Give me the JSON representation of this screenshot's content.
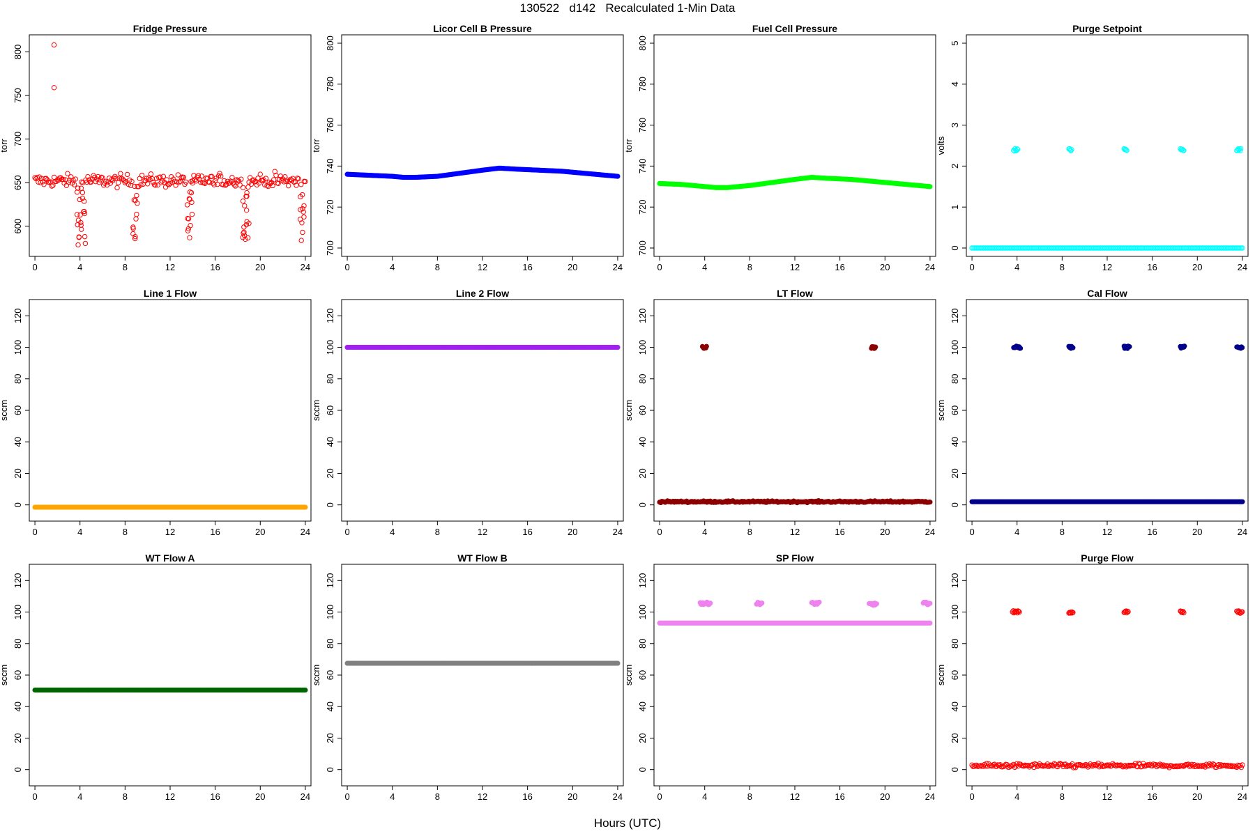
{
  "header": {
    "title": "130522   d142   Recalculated 1-Min Data"
  },
  "footer": {
    "xlabel": "Hours (UTC)"
  },
  "chart_data": [
    {
      "type": "scatter",
      "title": "Fridge Pressure",
      "ylabel": "torr",
      "color": "#ff0000",
      "marker": "open-circle",
      "xlim": [
        0,
        24
      ],
      "ylim": [
        575,
        810
      ],
      "yticks": [
        600,
        650,
        700,
        750,
        800
      ],
      "xticks": [
        0,
        4,
        8,
        12,
        16,
        20,
        24
      ],
      "series": [
        {
          "baseline": 652,
          "noise": 7,
          "dips": [
            [
              3.7,
              4.4,
              578
            ],
            [
              8.6,
              9.0,
              578
            ],
            [
              13.4,
              13.9,
              578
            ],
            [
              18.3,
              18.9,
              585
            ],
            [
              23.5,
              23.9,
              578
            ]
          ],
          "spikes": [
            [
              1.7,
              808
            ],
            [
              1.7,
              759
            ]
          ]
        }
      ]
    },
    {
      "type": "scatter",
      "title": "Licor Cell B Pressure",
      "ylabel": "torr",
      "color": "#0000ff",
      "marker": "filled-circle",
      "xlim": [
        0,
        24
      ],
      "ylim": [
        700,
        800
      ],
      "yticks": [
        700,
        720,
        740,
        760,
        780,
        800
      ],
      "xticks": [
        0,
        4,
        8,
        12,
        16,
        20,
        24
      ],
      "series": [
        {
          "x": [
            0,
            2,
            4,
            5,
            6,
            8,
            10,
            12,
            13.5,
            15,
            17,
            19,
            21,
            23,
            24
          ],
          "y": [
            736,
            735.5,
            735,
            734.5,
            734.5,
            735,
            736.5,
            738,
            739,
            738.5,
            738,
            737.5,
            736.5,
            735.5,
            735
          ]
        }
      ]
    },
    {
      "type": "scatter",
      "title": "Fuel Cell Pressure",
      "ylabel": "torr",
      "color": "#00ff00",
      "marker": "filled-circle",
      "xlim": [
        0,
        24
      ],
      "ylim": [
        700,
        800
      ],
      "yticks": [
        700,
        720,
        740,
        760,
        780,
        800
      ],
      "xticks": [
        0,
        4,
        8,
        12,
        16,
        20,
        24
      ],
      "series": [
        {
          "x": [
            0,
            2,
            4,
            5,
            6,
            8,
            10,
            12,
            13.5,
            15,
            17,
            19,
            21,
            23,
            24
          ],
          "y": [
            731.5,
            731,
            730,
            729.5,
            729.5,
            730.5,
            732,
            733.5,
            734.5,
            734,
            733.5,
            732.5,
            731.5,
            730.5,
            730
          ]
        }
      ]
    },
    {
      "type": "scatter",
      "title": "Purge Setpoint",
      "ylabel": "volts",
      "color": "#00ffff",
      "marker": "open-circle",
      "xlim": [
        0,
        24
      ],
      "ylim": [
        0,
        5
      ],
      "yticks": [
        0,
        1,
        2,
        3,
        4,
        5
      ],
      "xticks": [
        0,
        4,
        8,
        12,
        16,
        20,
        24
      ],
      "series": [
        {
          "baseline": 0,
          "noise": 0,
          "events": [
            [
              3.7,
              4.1,
              2.4
            ],
            [
              8.6,
              8.9,
              2.4
            ],
            [
              13.5,
              13.8,
              2.4
            ],
            [
              18.5,
              18.8,
              2.4
            ],
            [
              23.5,
              23.9,
              2.4
            ]
          ]
        }
      ]
    },
    {
      "type": "scatter",
      "title": "Line 1 Flow",
      "ylabel": "sccm",
      "color": "#ffa500",
      "marker": "filled-circle",
      "xlim": [
        0,
        24
      ],
      "ylim": [
        -5,
        125
      ],
      "yticks": [
        0,
        20,
        40,
        60,
        80,
        100,
        120
      ],
      "xticks": [
        0,
        4,
        8,
        12,
        16,
        20,
        24
      ],
      "series": [
        {
          "baseline": -1.5,
          "noise": 0
        }
      ]
    },
    {
      "type": "scatter",
      "title": "Line 2 Flow",
      "ylabel": "sccm",
      "color": "#a020f0",
      "marker": "filled-circle",
      "xlim": [
        0,
        24
      ],
      "ylim": [
        -5,
        125
      ],
      "yticks": [
        0,
        20,
        40,
        60,
        80,
        100,
        120
      ],
      "xticks": [
        0,
        4,
        8,
        12,
        16,
        20,
        24
      ],
      "series": [
        {
          "baseline": 100,
          "noise": 0
        }
      ]
    },
    {
      "type": "scatter",
      "title": "LT Flow",
      "ylabel": "sccm",
      "color": "#8b0000",
      "marker": "filled-circle",
      "xlim": [
        0,
        24
      ],
      "ylim": [
        -5,
        125
      ],
      "yticks": [
        0,
        20,
        40,
        60,
        80,
        100,
        120
      ],
      "xticks": [
        0,
        4,
        8,
        12,
        16,
        20,
        24
      ],
      "series": [
        {
          "baseline": 2,
          "noise": 0.5,
          "events": [
            [
              3.8,
              4.2,
              100
            ],
            [
              18.8,
              19.2,
              100
            ]
          ]
        }
      ]
    },
    {
      "type": "scatter",
      "title": "Cal Flow",
      "ylabel": "sccm",
      "color": "#00008b",
      "marker": "filled-circle",
      "xlim": [
        0,
        24
      ],
      "ylim": [
        -5,
        125
      ],
      "yticks": [
        0,
        20,
        40,
        60,
        80,
        100,
        120
      ],
      "xticks": [
        0,
        4,
        8,
        12,
        16,
        20,
        24
      ],
      "series": [
        {
          "baseline": 2,
          "noise": 0,
          "events": [
            [
              3.7,
              4.3,
              100
            ],
            [
              8.6,
              9.0,
              100
            ],
            [
              13.5,
              14.0,
              100
            ],
            [
              18.5,
              18.9,
              100
            ],
            [
              23.5,
              24.0,
              100
            ]
          ]
        }
      ]
    },
    {
      "type": "scatter",
      "title": "WT Flow A",
      "ylabel": "sccm",
      "color": "#006400",
      "marker": "filled-circle",
      "xlim": [
        0,
        24
      ],
      "ylim": [
        -5,
        125
      ],
      "yticks": [
        0,
        20,
        40,
        60,
        80,
        100,
        120
      ],
      "xticks": [
        0,
        4,
        8,
        12,
        16,
        20,
        24
      ],
      "series": [
        {
          "baseline": 50.5,
          "noise": 0
        }
      ]
    },
    {
      "type": "scatter",
      "title": "WT Flow B",
      "ylabel": "sccm",
      "color": "#808080",
      "marker": "filled-circle",
      "xlim": [
        0,
        24
      ],
      "ylim": [
        -5,
        125
      ],
      "yticks": [
        0,
        20,
        40,
        60,
        80,
        100,
        120
      ],
      "xticks": [
        0,
        4,
        8,
        12,
        16,
        20,
        24
      ],
      "series": [
        {
          "baseline": 67.5,
          "noise": 0
        }
      ]
    },
    {
      "type": "scatter",
      "title": "SP Flow",
      "ylabel": "sccm",
      "color": "#ee82ee",
      "marker": "filled-circle",
      "xlim": [
        0,
        24
      ],
      "ylim": [
        -5,
        125
      ],
      "yticks": [
        0,
        20,
        40,
        60,
        80,
        100,
        120
      ],
      "xticks": [
        0,
        4,
        8,
        12,
        16,
        20,
        24
      ],
      "series": [
        {
          "baseline": 93,
          "noise": 0,
          "events": [
            [
              3.6,
              4.5,
              105.5
            ],
            [
              8.6,
              9.1,
              105.5
            ],
            [
              13.5,
              14.2,
              105.5
            ],
            [
              18.6,
              19.3,
              105
            ],
            [
              23.4,
              24.0,
              105.5
            ]
          ]
        }
      ]
    },
    {
      "type": "scatter",
      "title": "Purge Flow",
      "ylabel": "sccm",
      "color": "#ff0000",
      "marker": "open-circle",
      "xlim": [
        0,
        24
      ],
      "ylim": [
        -5,
        125
      ],
      "yticks": [
        0,
        20,
        40,
        60,
        80,
        100,
        120
      ],
      "xticks": [
        0,
        4,
        8,
        12,
        16,
        20,
        24
      ],
      "series": [
        {
          "baseline": 2.5,
          "noise": 1.2,
          "events": [
            [
              3.6,
              4.2,
              100
            ],
            [
              8.6,
              9.0,
              100
            ],
            [
              13.5,
              13.9,
              100
            ],
            [
              18.5,
              18.8,
              100
            ],
            [
              23.5,
              24.0,
              100
            ]
          ]
        }
      ]
    }
  ]
}
